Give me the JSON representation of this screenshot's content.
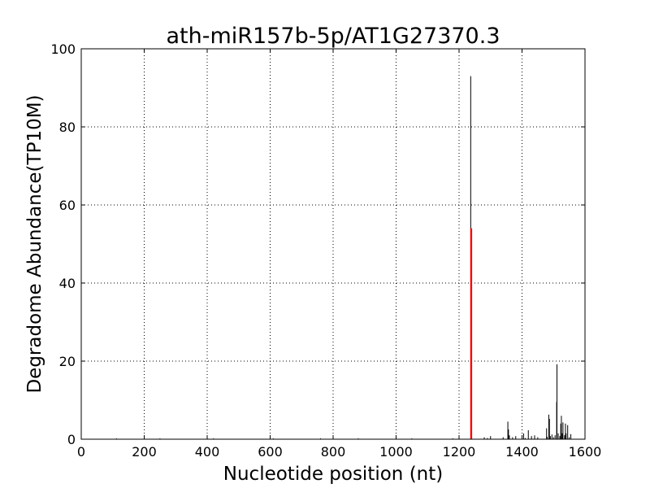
{
  "chart_data": {
    "type": "line",
    "title": "ath-miR157b-5p/AT1G27370.3",
    "xlabel": "Nucleotide position (nt)",
    "ylabel": "Degradome Abundance(TP10M)",
    "xlim": [
      0,
      1600
    ],
    "ylim": [
      0,
      100
    ],
    "xticks": [
      0,
      200,
      400,
      600,
      800,
      1000,
      1200,
      1400,
      1600
    ],
    "yticks": [
      0,
      20,
      40,
      60,
      80,
      100
    ],
    "grid": true,
    "legend": "none",
    "colors": {
      "series": "#000000",
      "highlight": "#ff0000",
      "grid": "#000000"
    },
    "series": [
      {
        "x": [
          112,
          250,
          420,
          610,
          760,
          880,
          1050,
          1180,
          1237,
          1239,
          1240,
          1280,
          1290,
          1300,
          1340,
          1355,
          1356,
          1357,
          1360,
          1370,
          1380,
          1400,
          1405,
          1410,
          1420,
          1430,
          1440,
          1450,
          1478,
          1480,
          1485,
          1487,
          1490,
          1495,
          1500,
          1505,
          1510,
          1511,
          1515,
          1520,
          1523,
          1525,
          1528,
          1530,
          1535,
          1538,
          1540,
          1545,
          1550,
          1555
        ],
        "y": [
          0.2,
          0.2,
          0.2,
          0.2,
          0.2,
          0.2,
          0.2,
          0.2,
          93,
          0.5,
          0.5,
          0.5,
          0.3,
          0.8,
          0.5,
          4.5,
          1.2,
          2.5,
          1.0,
          0.5,
          0.8,
          0.5,
          1.5,
          0.3,
          2.3,
          0.8,
          1.0,
          0.5,
          2.8,
          0.6,
          6.3,
          5.2,
          0.8,
          1.2,
          0.5,
          1.0,
          9.5,
          19.2,
          1.5,
          0.8,
          4.0,
          6.0,
          1.5,
          4.3,
          1.0,
          4.0,
          1.5,
          3.6,
          0.5,
          1.3
        ]
      },
      {
        "x": [
          1239
        ],
        "y": [
          54
        ]
      }
    ]
  }
}
